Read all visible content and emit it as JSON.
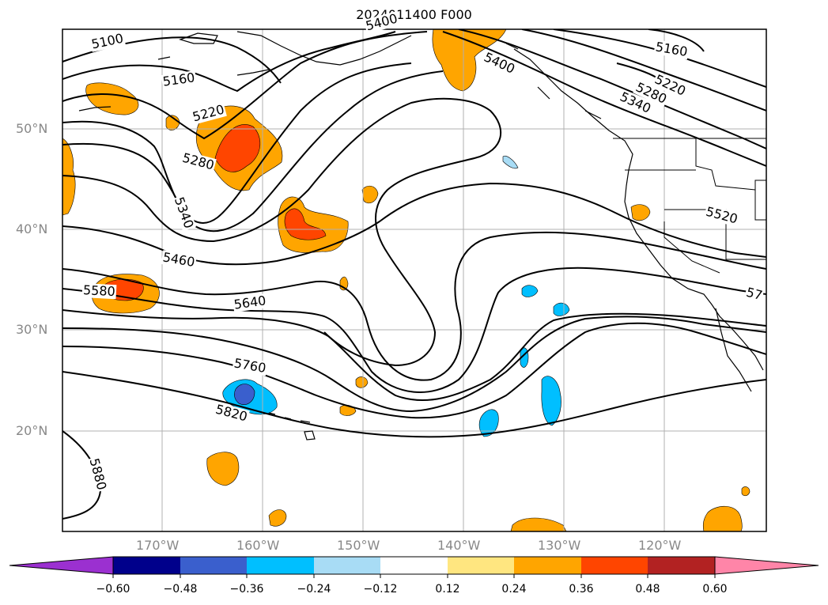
{
  "title": "2024011400 F000",
  "lat_labels": [
    "50°N",
    "40°N",
    "30°N",
    "20°N"
  ],
  "lon_labels": [
    "170°W",
    "160°W",
    "150°W",
    "140°W",
    "130°W",
    "120°W"
  ],
  "contour_labels": [
    "5100",
    "5160",
    "5220",
    "5280",
    "5340",
    "5400",
    "5460",
    "5520",
    "5580",
    "5640",
    "5760",
    "5820",
    "5880",
    "5400",
    "5160",
    "5220",
    "5280",
    "5340",
    "57"
  ],
  "colorbar": {
    "ticks": [
      "−0.60",
      "−0.48",
      "−0.36",
      "−0.24",
      "−0.12",
      "0.12",
      "0.24",
      "0.36",
      "0.48",
      "0.60"
    ],
    "colors": [
      "#9b30d0",
      "#00008b",
      "#3a5fcd",
      "#00bfff",
      "#a8dcf5",
      "#ffffff",
      "#ffe680",
      "#ffa500",
      "#ff4500",
      "#b22222",
      "#ff85a8"
    ]
  }
}
